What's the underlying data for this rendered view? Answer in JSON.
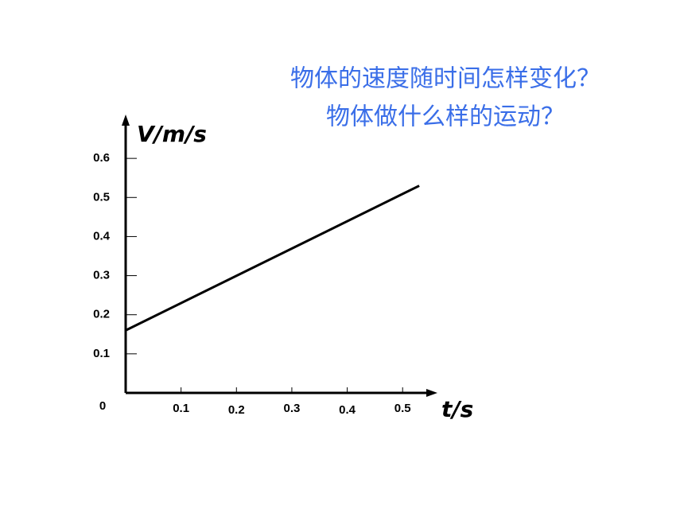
{
  "chart_data": {
    "type": "line",
    "title": "物体的速度随时间怎样变化？",
    "subtitle": "物体做什么样的运动？",
    "x_label": "t/s",
    "y_label": "V/m/s",
    "x": [
      0,
      0.53
    ],
    "series": [
      {
        "color": "#000000",
        "values": [
          0.16,
          0.53
        ]
      }
    ],
    "xlim": [
      0,
      0.56
    ],
    "ylim": [
      0,
      0.7
    ],
    "xticks": [
      0,
      0.1,
      0.2,
      0.3,
      0.4,
      0.5
    ],
    "yticks": [
      0.1,
      0.2,
      0.3,
      0.4,
      0.5,
      0.6
    ],
    "title_color": "#3a6ee8",
    "grid": false
  }
}
